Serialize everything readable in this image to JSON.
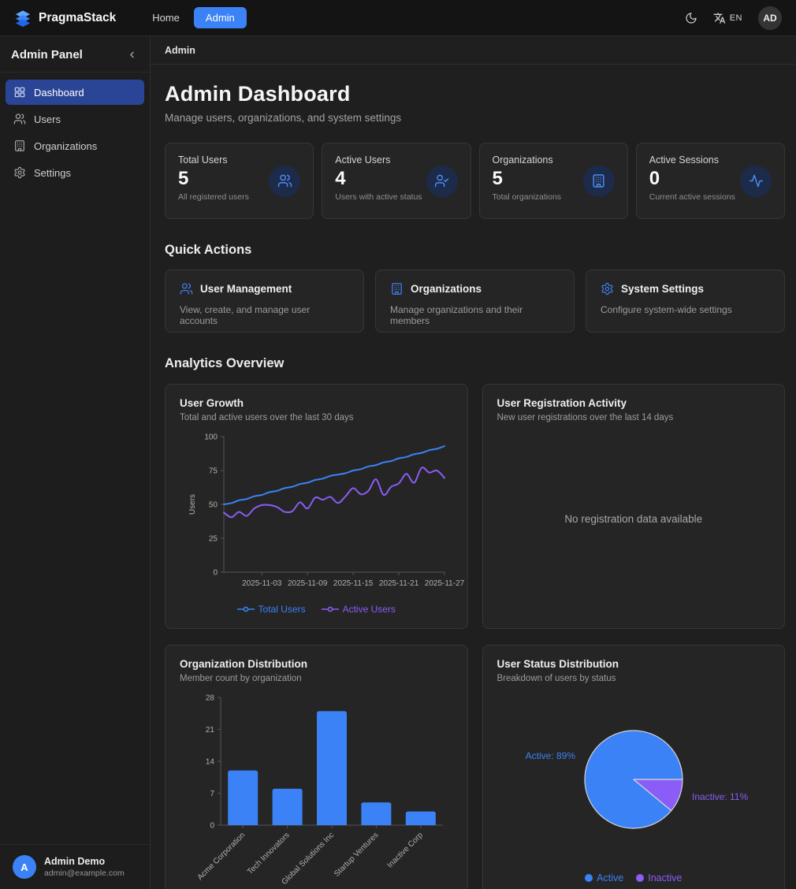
{
  "navbar": {
    "brand": "PragmaStack",
    "links": [
      {
        "label": "Home",
        "active": false
      },
      {
        "label": "Admin",
        "active": true
      }
    ],
    "language": "EN",
    "avatar": "AD"
  },
  "sidebar": {
    "title": "Admin Panel",
    "items": [
      {
        "label": "Dashboard",
        "icon": "grid",
        "active": true
      },
      {
        "label": "Users",
        "icon": "users",
        "active": false
      },
      {
        "label": "Organizations",
        "icon": "building",
        "active": false
      },
      {
        "label": "Settings",
        "icon": "gear",
        "active": false
      }
    ],
    "user": {
      "initial": "A",
      "name": "Admin Demo",
      "email": "admin@example.com"
    }
  },
  "breadcrumb": "Admin",
  "header": {
    "title": "Admin Dashboard",
    "subtitle": "Manage users, organizations, and system settings"
  },
  "stats": [
    {
      "label": "Total Users",
      "value": "5",
      "description": "All registered users",
      "icon": "users-icon"
    },
    {
      "label": "Active Users",
      "value": "4",
      "description": "Users with active status",
      "icon": "user-check-icon"
    },
    {
      "label": "Organizations",
      "value": "5",
      "description": "Total organizations",
      "icon": "building-icon"
    },
    {
      "label": "Active Sessions",
      "value": "0",
      "description": "Current active sessions",
      "icon": "activity-icon"
    }
  ],
  "quick_actions": {
    "heading": "Quick Actions",
    "cards": [
      {
        "title": "User Management",
        "description": "View, create, and manage user accounts",
        "icon": "users-icon"
      },
      {
        "title": "Organizations",
        "description": "Manage organizations and their members",
        "icon": "building-icon"
      },
      {
        "title": "System Settings",
        "description": "Configure system-wide settings",
        "icon": "gear-icon"
      }
    ]
  },
  "analytics": {
    "heading": "Analytics Overview"
  },
  "colors": {
    "accent_blue": "#3b82f6",
    "accent_purple": "#8b5cf6"
  },
  "chart_data": [
    {
      "type": "line",
      "title": "User Growth",
      "subtitle": "Total and active users over the last 30 days",
      "ylabel": "Users",
      "ylim": [
        0,
        100
      ],
      "yticks": [
        0,
        25,
        50,
        75,
        100
      ],
      "xticks": [
        "2025-11-03",
        "2025-11-09",
        "2025-11-15",
        "2025-11-21",
        "2025-11-27"
      ],
      "xtick_positions": [
        5,
        11,
        17,
        23,
        29
      ],
      "n_points": 30,
      "legend_position": "bottom",
      "grid": false,
      "series": [
        {
          "name": "Total Users",
          "color": "#3b82f6",
          "values": [
            50,
            51,
            53,
            54,
            56,
            57,
            59,
            60,
            62,
            63,
            65,
            66,
            68,
            69,
            71,
            72,
            73,
            75,
            76,
            78,
            79,
            81,
            82,
            84,
            85,
            87,
            88,
            90,
            91,
            93
          ]
        },
        {
          "name": "Active Users",
          "color": "#8b5cf6",
          "values": [
            44,
            40.5,
            44.5,
            41.5,
            47,
            49.5,
            49.5,
            48,
            44.5,
            45,
            51.5,
            47,
            55,
            53.5,
            55.5,
            51,
            56,
            62,
            57.5,
            60,
            68.5,
            57,
            63,
            65.5,
            72.5,
            66,
            77,
            73.5,
            75,
            69.5
          ]
        }
      ]
    },
    {
      "type": "empty",
      "title": "User Registration Activity",
      "subtitle": "New user registrations over the last 14 days",
      "empty_message": "No registration data available"
    },
    {
      "type": "bar",
      "title": "Organization Distribution",
      "subtitle": "Member count by organization",
      "categories": [
        "Acme Corporation",
        "Tech Innovators",
        "Global Solutions Inc",
        "Startup Ventures",
        "Inactive Corp"
      ],
      "values": [
        12,
        8,
        25,
        5,
        3
      ],
      "ylim": [
        0,
        28
      ],
      "yticks": [
        0,
        7,
        14,
        21,
        28
      ],
      "bar_color": "#3b82f6",
      "grid": false
    },
    {
      "type": "pie",
      "title": "User Status Distribution",
      "subtitle": "Breakdown of users by status",
      "slices": [
        {
          "label": "Active",
          "pct": 89,
          "color": "#3b82f6"
        },
        {
          "label": "Inactive",
          "pct": 11,
          "color": "#8b5cf6"
        }
      ],
      "side_labels": [
        "Active: 89%",
        "Inactive: 11%"
      ],
      "legend": [
        "Active",
        "Inactive"
      ],
      "legend_position": "bottom"
    }
  ]
}
